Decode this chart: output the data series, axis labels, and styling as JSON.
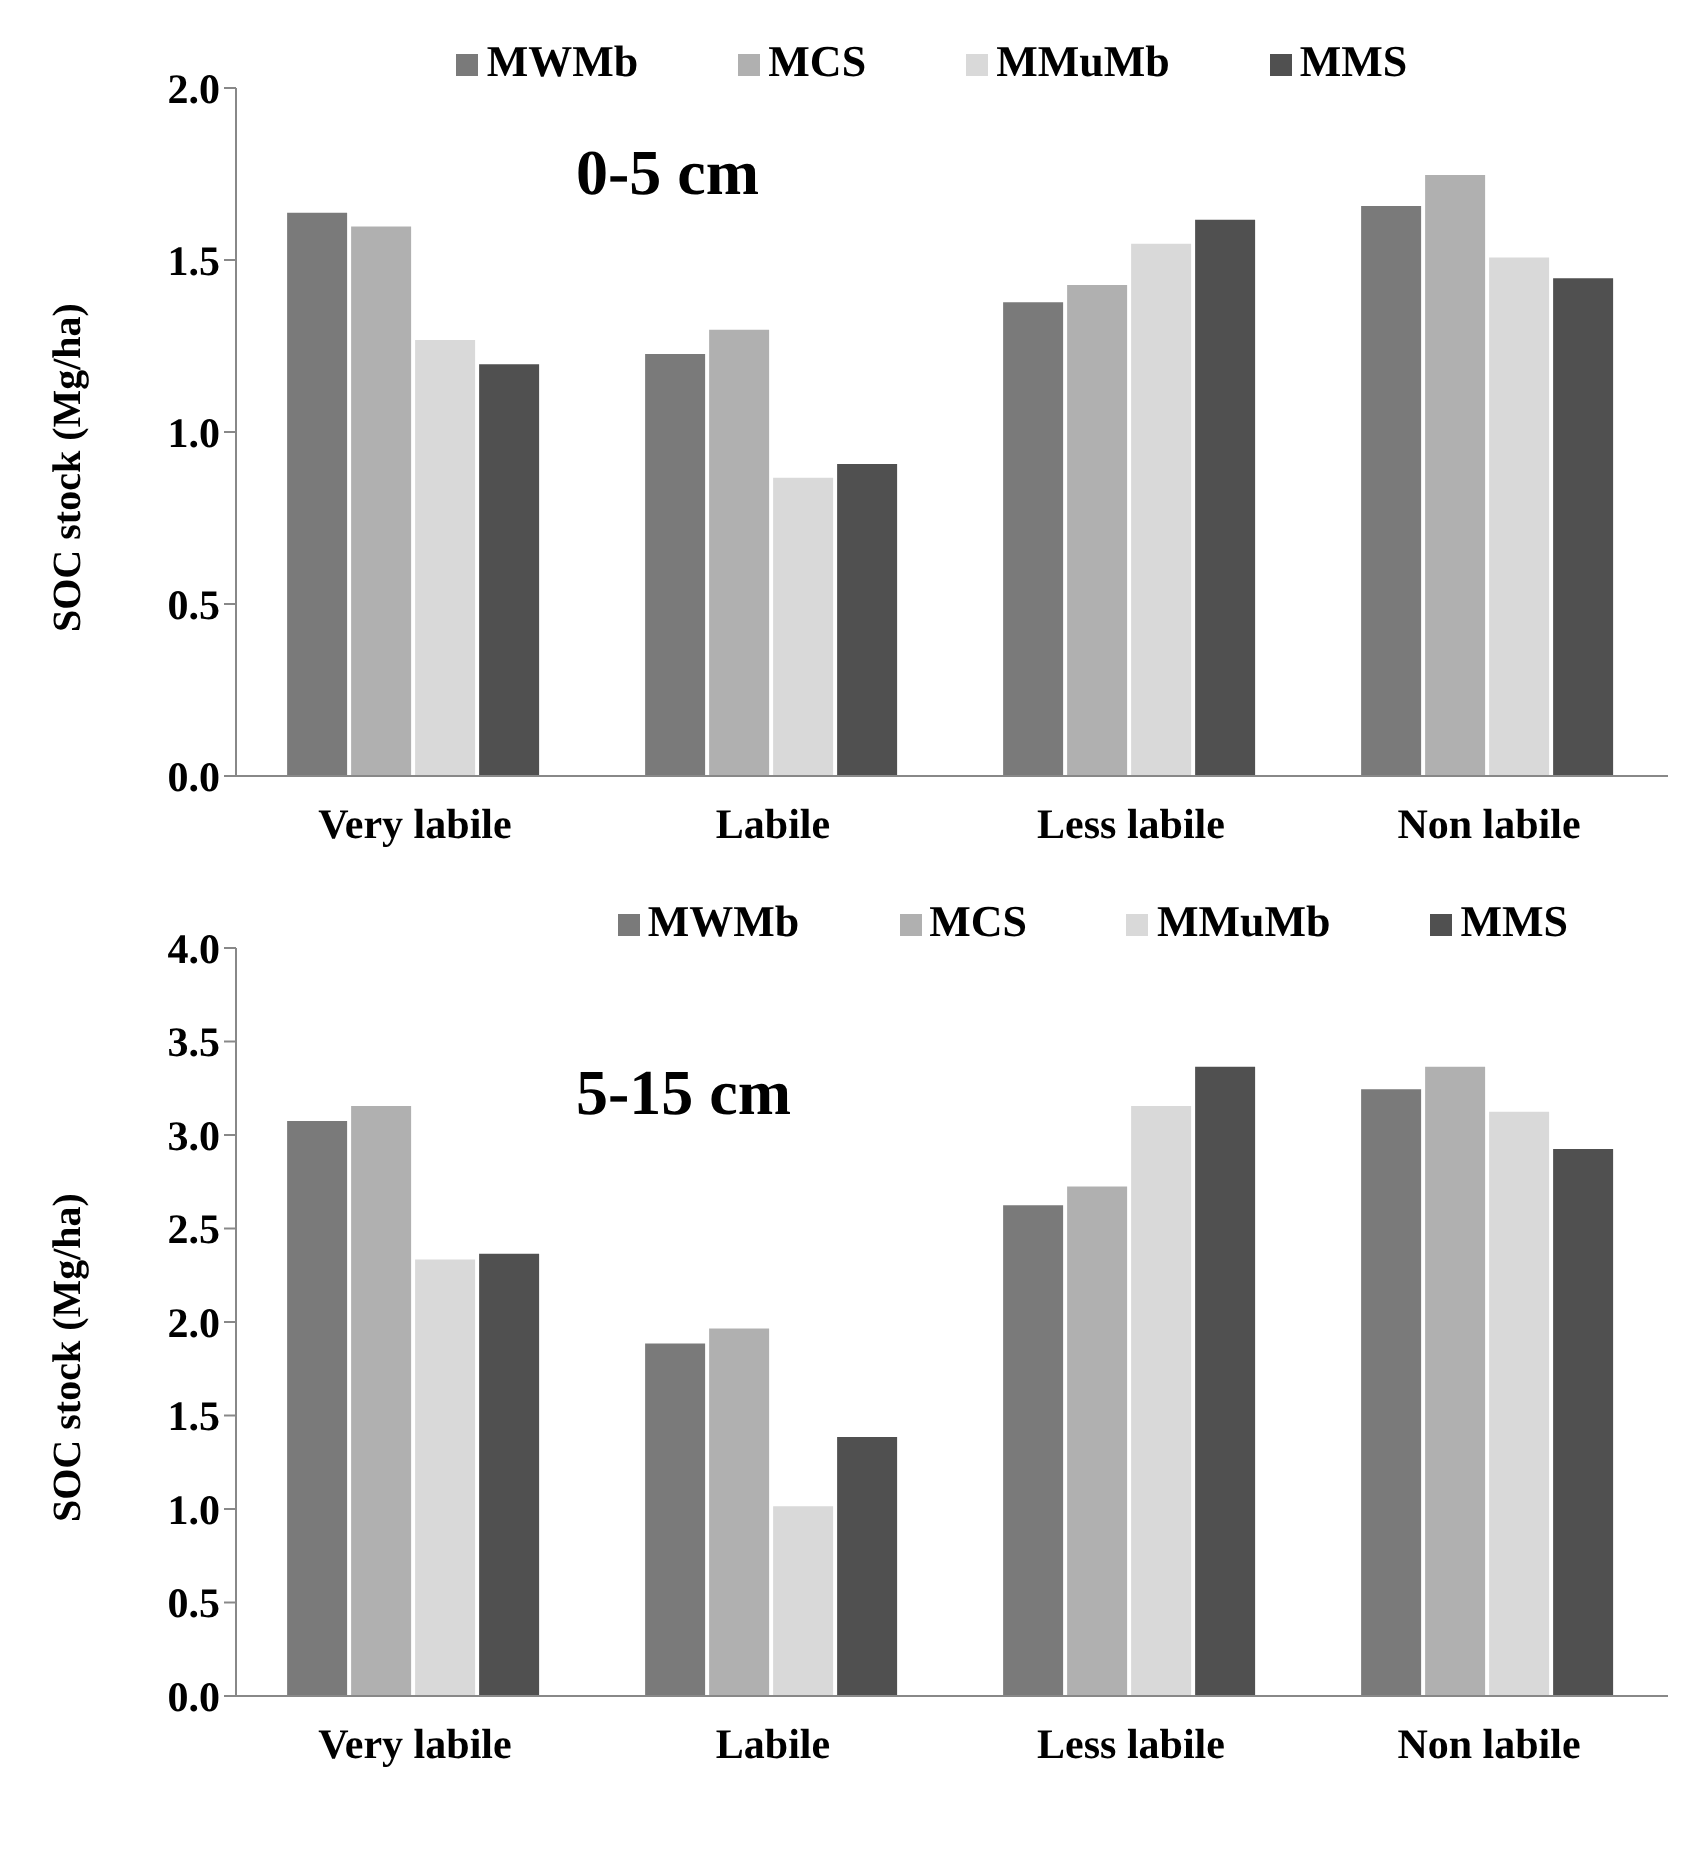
{
  "chart_data": [
    {
      "type": "bar",
      "title": "0-5 cm",
      "ylabel": "SOC stock (Mg/ha)",
      "categories": [
        "Very labile",
        "Labile",
        "Less labile",
        "Non labile"
      ],
      "series": [
        {
          "name": "MWMb",
          "color": "#7a7a7a",
          "values": [
            1.64,
            1.23,
            1.38,
            1.66
          ]
        },
        {
          "name": "MCS",
          "color": "#b0b0b0",
          "values": [
            1.6,
            1.3,
            1.43,
            1.75
          ]
        },
        {
          "name": "MMuMb",
          "color": "#d9d9d9",
          "values": [
            1.27,
            0.87,
            1.55,
            1.51
          ]
        },
        {
          "name": "MMS",
          "color": "#505050",
          "values": [
            1.2,
            0.91,
            1.62,
            1.45
          ]
        }
      ],
      "ylim": [
        0,
        2
      ],
      "yticks": [
        {
          "value": 0,
          "label": "0.0"
        },
        {
          "value": 0.5,
          "label": "0.5"
        },
        {
          "value": 1,
          "label": "1.0"
        },
        {
          "value": 1.5,
          "label": "1.5"
        },
        {
          "value": 2,
          "label": "2.0"
        }
      ],
      "grid": false,
      "legend": "top"
    },
    {
      "type": "bar",
      "title": "5-15 cm",
      "ylabel": "SOC stock (Mg/ha)",
      "categories": [
        "Very labile",
        "Labile",
        "Less labile",
        "Non labile"
      ],
      "series": [
        {
          "name": "MWMb",
          "color": "#7a7a7a",
          "values": [
            3.08,
            1.89,
            2.63,
            3.25
          ]
        },
        {
          "name": "MCS",
          "color": "#b0b0b0",
          "values": [
            3.16,
            1.97,
            2.73,
            3.37
          ]
        },
        {
          "name": "MMuMb",
          "color": "#d9d9d9",
          "values": [
            2.34,
            1.02,
            3.16,
            3.13
          ]
        },
        {
          "name": "MMS",
          "color": "#505050",
          "values": [
            2.37,
            1.39,
            3.37,
            2.93
          ]
        }
      ],
      "ylim": [
        0,
        4
      ],
      "yticks": [
        {
          "value": 0,
          "label": "0.0"
        },
        {
          "value": 0.5,
          "label": "0.5"
        },
        {
          "value": 1,
          "label": "1.0"
        },
        {
          "value": 1.5,
          "label": "1.5"
        },
        {
          "value": 2,
          "label": "2.0"
        },
        {
          "value": 2.5,
          "label": "2.5"
        },
        {
          "value": 3,
          "label": "3.0"
        },
        {
          "value": 3.5,
          "label": "3.5"
        },
        {
          "value": 4,
          "label": "4.0"
        }
      ],
      "grid": false,
      "legend": "top right"
    }
  ]
}
